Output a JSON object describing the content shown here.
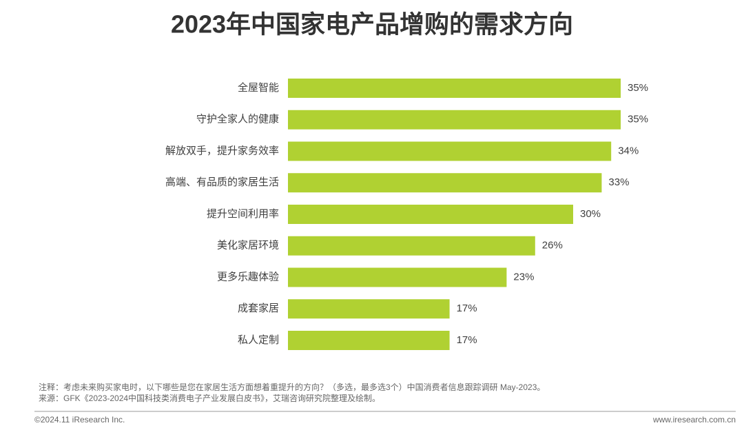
{
  "chart_data": {
    "type": "bar",
    "orientation": "horizontal",
    "title": "2023年中国家电产品增购的需求方向",
    "categories": [
      "全屋智能",
      "守护全家人的健康",
      "解放双手，提升家务效率",
      "高端、有品质的家居生活",
      "提升空间利用率",
      "美化家居环境",
      "更多乐趣体验",
      "成套家居",
      "私人定制"
    ],
    "values": [
      35,
      35,
      34,
      33,
      30,
      26,
      23,
      17,
      17
    ],
    "value_labels": [
      "35%",
      "35%",
      "34%",
      "33%",
      "30%",
      "26%",
      "23%",
      "17%",
      "17%"
    ],
    "color": "#b0d132"
  },
  "footnotes": [
    "注释：考虑未来购买家电时，以下哪些是您在家居生活方面想着重提升的方向？（多选，最多选3个）中国消费者信息跟踪调研 May-2023。",
    "来源：GFK《2023-2024中国科技类消费电子产业发展白皮书》，艾瑞咨询研究院整理及绘制。"
  ],
  "footer": {
    "copyright": "©2024.11 iResearch Inc.",
    "website": "www.iresearch.com.cn"
  }
}
